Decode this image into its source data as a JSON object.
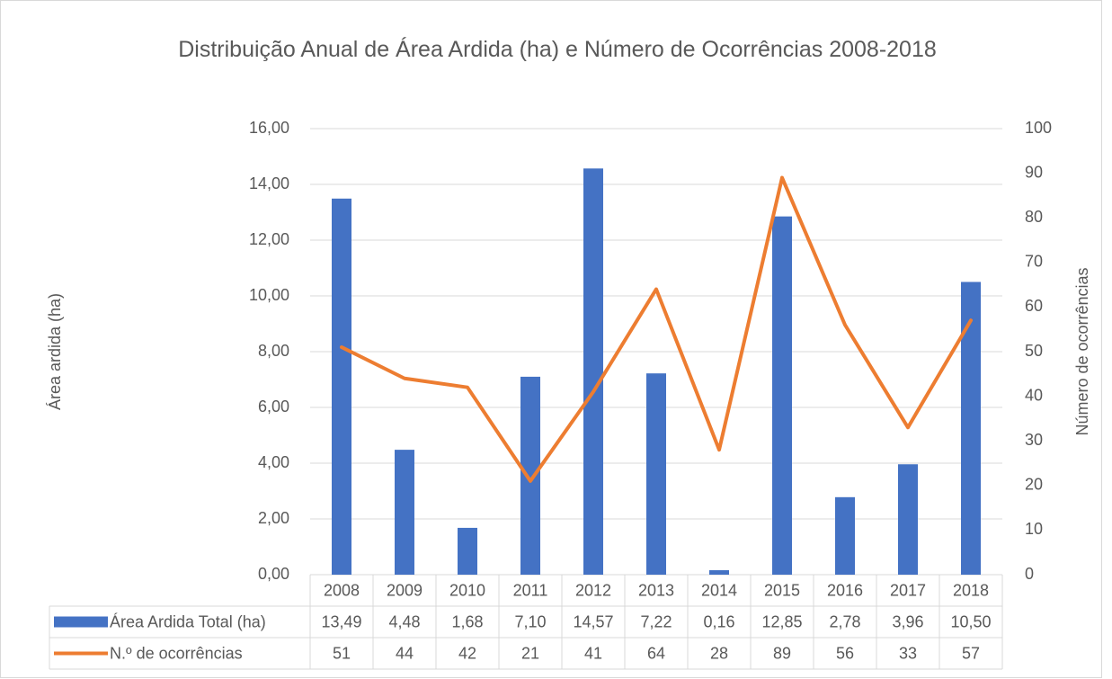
{
  "chart_data": {
    "type": "bar",
    "title": "Distribuição Anual de Área Ardida (ha) e Número de Ocorrências 2008-2018",
    "y_label": "Área ardida (ha)",
    "y2_label": "Número de ocorrências",
    "categories": [
      "2008",
      "2009",
      "2010",
      "2011",
      "2012",
      "2013",
      "2014",
      "2015",
      "2016",
      "2017",
      "2018"
    ],
    "series": [
      {
        "name": "Área Ardida Total (ha)",
        "type": "bar",
        "color": "#4472c4",
        "values": [
          13.49,
          4.48,
          1.68,
          7.1,
          14.57,
          7.22,
          0.16,
          12.85,
          2.78,
          3.96,
          10.5
        ],
        "value_labels": [
          "13,49",
          "4,48",
          "1,68",
          "7,10",
          "14,57",
          "7,22",
          "0,16",
          "12,85",
          "2,78",
          "3,96",
          "10,50"
        ]
      },
      {
        "name": "N.º de ocorrências",
        "type": "line",
        "color": "#ed7d31",
        "axis": "y2",
        "values": [
          51,
          44,
          42,
          21,
          41,
          64,
          28,
          89,
          56,
          33,
          57
        ]
      }
    ],
    "ylim": [
      0,
      16
    ],
    "yticks": [
      {
        "value": 0,
        "label": "0,00"
      },
      {
        "value": 2,
        "label": "2,00"
      },
      {
        "value": 4,
        "label": "4,00"
      },
      {
        "value": 6,
        "label": "6,00"
      },
      {
        "value": 8,
        "label": "8,00"
      },
      {
        "value": 10,
        "label": "10,00"
      },
      {
        "value": 12,
        "label": "12,00"
      },
      {
        "value": 14,
        "label": "14,00"
      },
      {
        "value": 16,
        "label": "16,00"
      }
    ],
    "y2lim": [
      0,
      100
    ],
    "y2ticks": [
      0,
      10,
      20,
      30,
      40,
      50,
      60,
      70,
      80,
      90,
      100
    ],
    "grid": true
  }
}
